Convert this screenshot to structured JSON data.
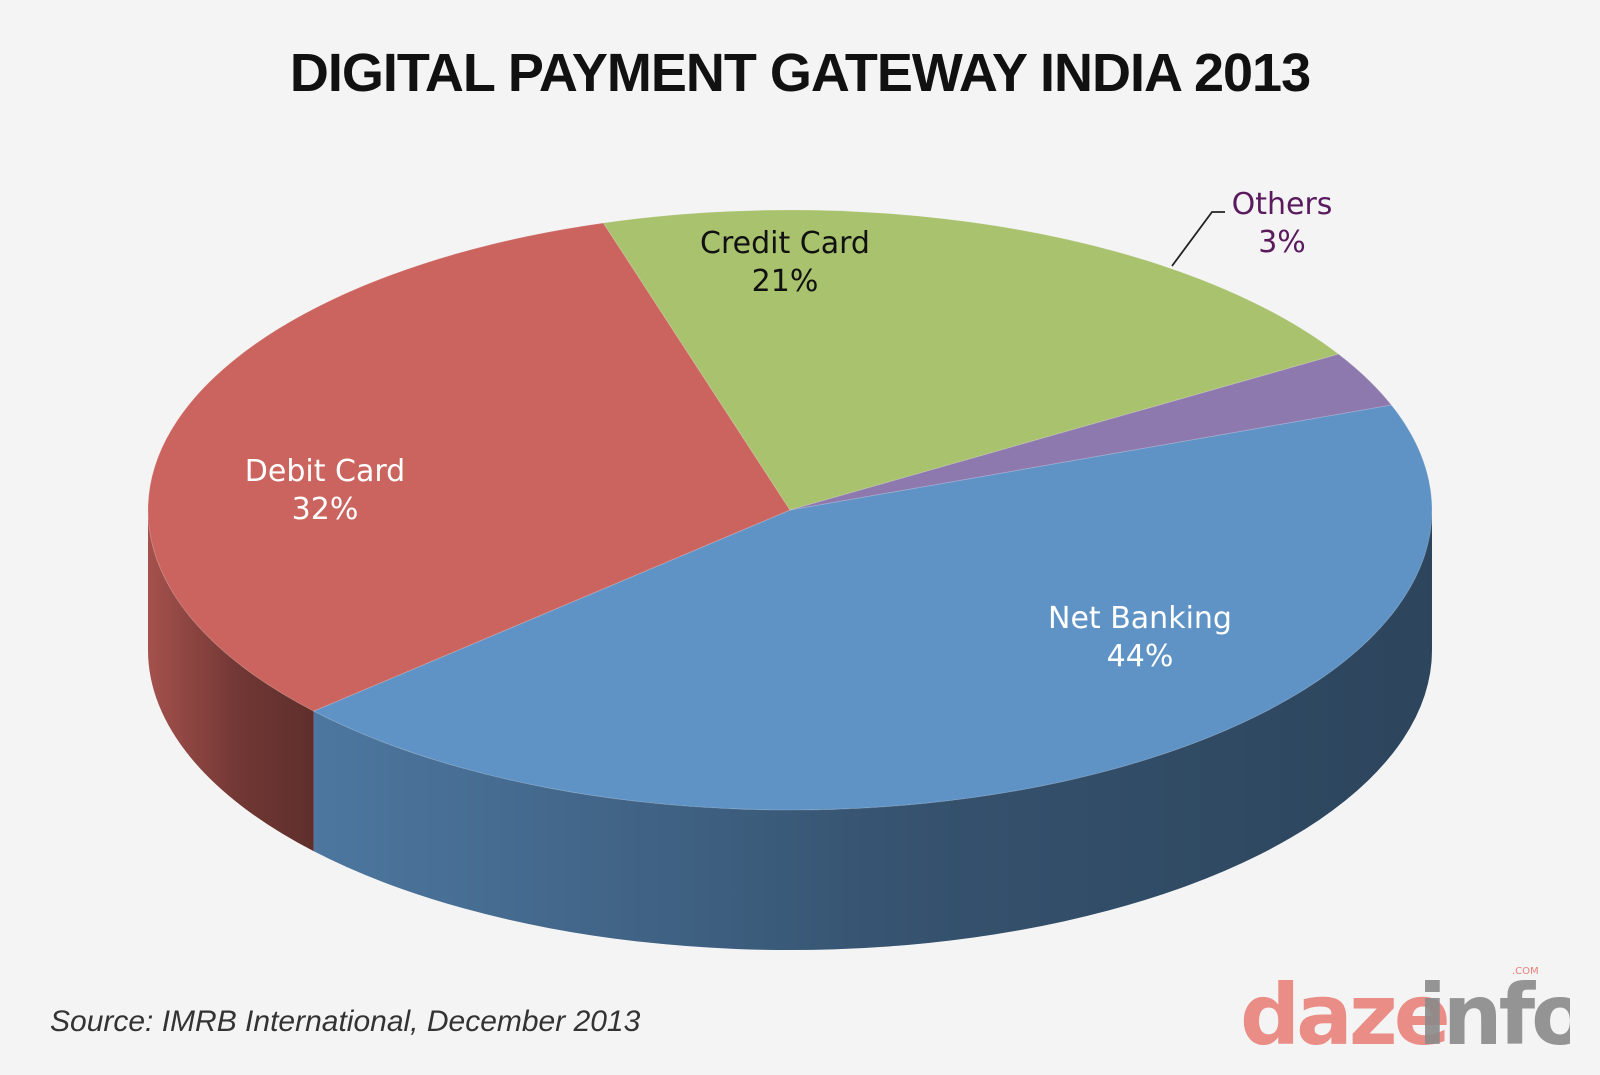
{
  "title": "DIGITAL PAYMENT GATEWAY INDIA 2013",
  "source": "Source: IMRB International, December 2013",
  "logo": {
    "text_main": "dazeinfo",
    "text_tld": ".COM",
    "colors": {
      "daze": "#e8827b",
      "info": "#8a8a8a"
    }
  },
  "chart_data": {
    "type": "pie",
    "style": "3d",
    "title": "DIGITAL PAYMENT GATEWAY INDIA 2013",
    "unit": "%",
    "slices": [
      {
        "name": "Net Banking",
        "value": 44,
        "label": "44%",
        "color": "#5f93c6",
        "label_color": "#ffffff"
      },
      {
        "name": "Debit Card",
        "value": 32,
        "label": "32%",
        "color": "#cb645e",
        "label_color": "#ffffff"
      },
      {
        "name": "Credit Card",
        "value": 21,
        "label": "21%",
        "color": "#a9c26e",
        "label_color": "#111111"
      },
      {
        "name": "Others",
        "value": 3,
        "label": "3%",
        "color": "#8e79ae",
        "label_color": "#5a1a5e"
      }
    ],
    "legend": "none"
  }
}
